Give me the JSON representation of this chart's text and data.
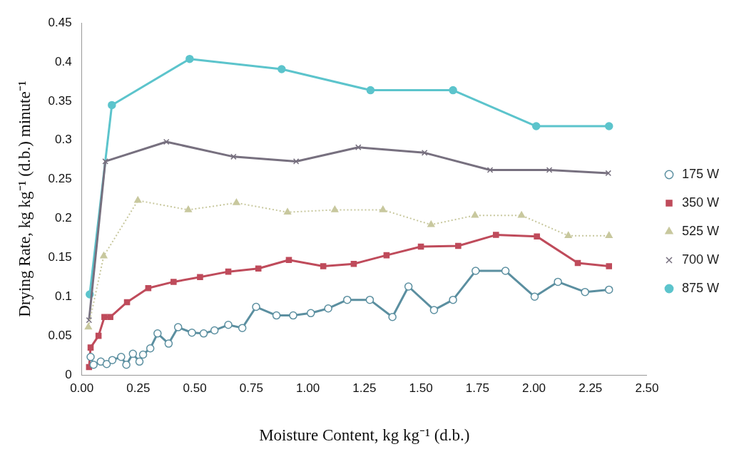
{
  "chart_data": {
    "type": "line",
    "xlabel": "Moisture Content, kg kg⁻¹ (d.b.)",
    "ylabel": "Drying Rate, kg kg⁻¹ (d.b.) minute⁻¹",
    "xlim": [
      0,
      2.5
    ],
    "xticks": [
      {
        "value": 0,
        "label": "0.00"
      },
      {
        "value": 0.25,
        "label": "0.25"
      },
      {
        "value": 0.5,
        "label": "0.50"
      },
      {
        "value": 0.75,
        "label": "0.75"
      },
      {
        "value": 1,
        "label": "1.00"
      },
      {
        "value": 1.25,
        "label": "1.25"
      },
      {
        "value": 1.5,
        "label": "1.50"
      },
      {
        "value": 1.75,
        "label": "1.75"
      },
      {
        "value": 2,
        "label": "2.00"
      },
      {
        "value": 2.25,
        "label": "2.25"
      },
      {
        "value": 2.5,
        "label": "2.50"
      }
    ],
    "ylim": [
      0,
      0.45
    ],
    "yticks": [
      0,
      0.05,
      0.1,
      0.15,
      0.2,
      0.25,
      0.3,
      0.35,
      0.4,
      0.45
    ],
    "grid": false,
    "legend": "right",
    "line_style": "solid",
    "series": [
      {
        "name": "175 W",
        "color": "#5b8fa0",
        "marker": "circle",
        "x": [
          0.039,
          0.052,
          0.084,
          0.11,
          0.135,
          0.174,
          0.197,
          0.226,
          0.255,
          0.271,
          0.303,
          0.335,
          0.384,
          0.426,
          0.487,
          0.539,
          0.587,
          0.648,
          0.71,
          0.771,
          0.861,
          0.935,
          1.013,
          1.09,
          1.174,
          1.274,
          1.374,
          1.445,
          1.558,
          1.642,
          1.742,
          1.874,
          2.003,
          2.106,
          2.226,
          2.332
        ],
        "values": [
          0.023,
          0.013,
          0.017,
          0.014,
          0.019,
          0.023,
          0.013,
          0.027,
          0.017,
          0.026,
          0.034,
          0.053,
          0.04,
          0.061,
          0.054,
          0.053,
          0.057,
          0.064,
          0.06,
          0.087,
          0.076,
          0.076,
          0.079,
          0.085,
          0.096,
          0.096,
          0.074,
          0.113,
          0.083,
          0.096,
          0.133,
          0.133,
          0.1,
          0.119,
          0.106,
          0.109
        ]
      },
      {
        "name": "350 W",
        "color": "#bf4b5b",
        "marker": "square",
        "x": [
          0.032,
          0.039,
          0.074,
          0.1,
          0.126,
          0.2,
          0.294,
          0.406,
          0.523,
          0.648,
          0.781,
          0.916,
          1.068,
          1.203,
          1.348,
          1.5,
          1.665,
          1.832,
          2.013,
          2.194,
          2.332
        ],
        "values": [
          0.01,
          0.035,
          0.05,
          0.074,
          0.074,
          0.093,
          0.111,
          0.119,
          0.125,
          0.132,
          0.136,
          0.147,
          0.139,
          0.142,
          0.153,
          0.164,
          0.165,
          0.179,
          0.177,
          0.143,
          0.139
        ]
      },
      {
        "name": "525 W",
        "color": "#c8c89e",
        "marker": "triangle",
        "line_style": "dotted",
        "x": [
          0.029,
          0.097,
          0.248,
          0.471,
          0.684,
          0.91,
          1.119,
          1.332,
          1.545,
          1.739,
          1.945,
          2.152,
          2.332
        ],
        "values": [
          0.061,
          0.152,
          0.223,
          0.211,
          0.22,
          0.208,
          0.211,
          0.211,
          0.192,
          0.204,
          0.204,
          0.178,
          0.178
        ]
      },
      {
        "name": "700 W",
        "color": "#77707f",
        "marker": "cross",
        "x": [
          0.032,
          0.104,
          0.374,
          0.671,
          0.948,
          1.223,
          1.516,
          1.806,
          2.068,
          2.329
        ],
        "values": [
          0.07,
          0.273,
          0.298,
          0.279,
          0.273,
          0.291,
          0.284,
          0.262,
          0.262,
          0.258
        ]
      },
      {
        "name": "875 W",
        "color": "#5cc4cc",
        "marker": "circle",
        "x": [
          0.035,
          0.133,
          0.477,
          0.884,
          1.277,
          1.642,
          2.01,
          2.332
        ],
        "values": [
          0.103,
          0.345,
          0.404,
          0.391,
          0.364,
          0.364,
          0.318,
          0.318
        ]
      }
    ]
  }
}
